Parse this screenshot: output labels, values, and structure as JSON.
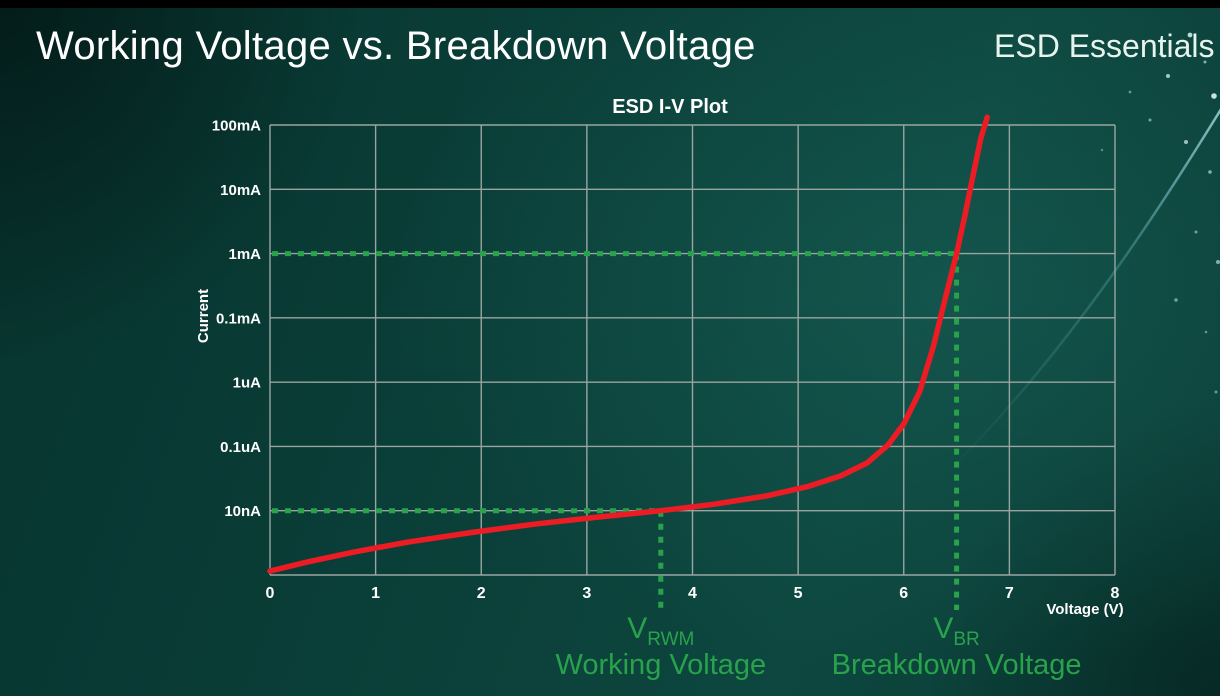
{
  "slide": {
    "title": "Working Voltage vs. Breakdown Voltage",
    "brand": "ESD Essentials"
  },
  "chart_data": {
    "type": "line",
    "title": "ESD I-V Plot",
    "xlabel": "Voltage (V)",
    "ylabel": "Current",
    "x_range": [
      0,
      8
    ],
    "x_ticks": [
      "0",
      "1",
      "2",
      "3",
      "4",
      "5",
      "6",
      "7",
      "8"
    ],
    "y_tick_labels_top_to_bottom": [
      "100mA",
      "10mA",
      "1mA",
      "0.1mA",
      "1uA",
      "0.1uA",
      "10nA"
    ],
    "y_scale_note": "logarithmic current axis, one labeled level per gridline",
    "grid": true,
    "grid_color": "#9aa5a2",
    "curve_color": "#ed1c24",
    "annotation_color": "#28a24b",
    "series": [
      {
        "name": "ESD device I-V curve",
        "y_units": "gridlines above bottom axis (10nA = 1, 1mA = 5, 100mA = 7)",
        "points": [
          [
            0.0,
            0.06
          ],
          [
            0.35,
            0.2
          ],
          [
            0.8,
            0.36
          ],
          [
            1.3,
            0.51
          ],
          [
            1.9,
            0.66
          ],
          [
            2.5,
            0.79
          ],
          [
            3.1,
            0.9
          ],
          [
            3.7,
            1.0
          ],
          [
            4.2,
            1.1
          ],
          [
            4.7,
            1.23
          ],
          [
            5.1,
            1.38
          ],
          [
            5.4,
            1.54
          ],
          [
            5.65,
            1.74
          ],
          [
            5.85,
            2.02
          ],
          [
            6.0,
            2.35
          ],
          [
            6.15,
            2.85
          ],
          [
            6.28,
            3.55
          ],
          [
            6.4,
            4.35
          ],
          [
            6.5,
            5.0
          ],
          [
            6.58,
            5.6
          ],
          [
            6.66,
            6.25
          ],
          [
            6.73,
            6.8
          ],
          [
            6.79,
            7.12
          ]
        ]
      }
    ],
    "annotations": {
      "working_voltage": {
        "symbol": "V",
        "subscript": "RWM",
        "caption": "Working Voltage",
        "voltage": 3.7,
        "current_label": "10nA"
      },
      "breakdown_voltage": {
        "symbol": "V",
        "subscript": "BR",
        "caption": "Breakdown Voltage",
        "voltage": 6.5,
        "current_label": "1mA"
      }
    }
  }
}
